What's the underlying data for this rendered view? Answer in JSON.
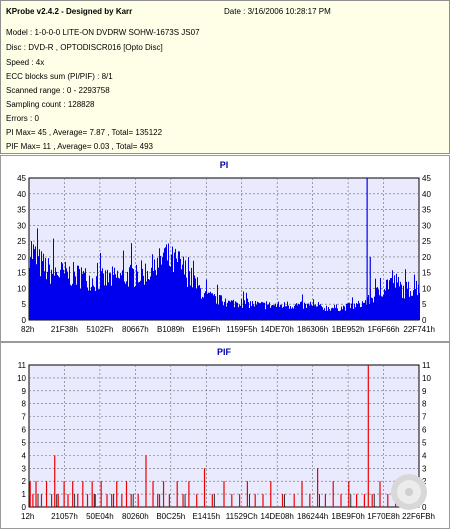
{
  "info": {
    "title": "KProbe v2.4.2 - Designed by Karr",
    "date": "Date : 3/16/2006 10:28:17 PM",
    "lines": [
      "Model : 1-0-0-0 LITE-ON DVDRW SOHW-1673S JS07",
      "Disc : DVD-R , OPTODISCR016 [Opto Disc]",
      "Speed : 4x",
      "ECC blocks sum (PI/PIF) : 8/1",
      "Scanned range : 0 - 2293758",
      "Sampling count : 128828",
      "Errors : 0",
      "PI Max= 45 , Average= 7.87 , Total= 135122",
      "PIF Max= 11 , Average= 0.03 , Total= 493"
    ]
  },
  "colors": {
    "plot_bg": "#eaeaff",
    "pi_series": "#0000ee",
    "pif_series": "#ee0000",
    "pif_minor": "#000000",
    "title_text": "#0000aa",
    "grid": "#6a6a6a",
    "info_bg": "#ffffe8"
  },
  "chart_data": [
    {
      "type": "bar",
      "title": "PI",
      "ylim": [
        0,
        45
      ],
      "yticks": [
        0,
        5,
        10,
        15,
        20,
        25,
        30,
        35,
        40,
        45
      ],
      "xtick_labels": [
        "82h",
        "21F38h",
        "5102Fh",
        "80667h",
        "B1089h",
        "E196Fh",
        "1159F5h",
        "14DE70h",
        "186306h",
        "1BE952h",
        "1F6F66h",
        "22F741h"
      ],
      "grid": true,
      "series": [
        {
          "name": "PI",
          "envelope_x": [
            0,
            0.02,
            0.05,
            0.09,
            0.13,
            0.17,
            0.21,
            0.25,
            0.29,
            0.33,
            0.345,
            0.36,
            0.385,
            0.41,
            0.43,
            0.45,
            0.47,
            0.49,
            0.51,
            0.55,
            0.6,
            0.65,
            0.7,
            0.75,
            0.8,
            0.84,
            0.87,
            0.9,
            0.93,
            0.96,
            1.0
          ],
          "envelope_y": [
            30,
            24,
            20,
            19,
            18,
            16,
            17,
            18,
            19,
            22,
            27,
            24,
            23,
            18,
            14,
            10,
            9,
            8,
            7,
            7,
            6,
            6,
            6,
            5,
            5,
            6,
            8,
            12,
            17,
            12,
            14
          ],
          "spikes": [
            {
              "x": 0.867,
              "y": 45
            },
            {
              "x": 0.875,
              "y": 20
            }
          ]
        }
      ]
    },
    {
      "type": "bar",
      "title": "PIF",
      "ylim": [
        0,
        11
      ],
      "yticks": [
        0,
        1,
        2,
        3,
        4,
        5,
        6,
        7,
        8,
        9,
        10,
        11
      ],
      "xtick_labels": [
        "12h",
        "21057h",
        "50E04h",
        "80260h",
        "B0C25h",
        "E1415h",
        "11529Ch",
        "14DE08h",
        "186244h",
        "1BE9F0h",
        "1F70E8h",
        "22F6FBh"
      ],
      "grid": true,
      "series": [
        {
          "name": "PIF",
          "x": [
            0.003,
            0.01,
            0.018,
            0.032,
            0.045,
            0.058,
            0.066,
            0.075,
            0.09,
            0.1,
            0.112,
            0.125,
            0.138,
            0.15,
            0.162,
            0.17,
            0.185,
            0.2,
            0.212,
            0.225,
            0.238,
            0.25,
            0.262,
            0.28,
            0.3,
            0.318,
            0.33,
            0.345,
            0.36,
            0.38,
            0.395,
            0.41,
            0.43,
            0.45,
            0.47,
            0.5,
            0.52,
            0.54,
            0.56,
            0.58,
            0.6,
            0.62,
            0.65,
            0.68,
            0.7,
            0.72,
            0.74,
            0.76,
            0.78,
            0.8,
            0.82,
            0.84,
            0.86,
            0.87,
            0.88,
            0.9,
            0.92,
            0.94,
            0.96,
            0.98
          ],
          "values": [
            2,
            1,
            2,
            1,
            2,
            1,
            4,
            1,
            2,
            1,
            2,
            1,
            2,
            1,
            2,
            1,
            2,
            1,
            1,
            2,
            1,
            2,
            1,
            1,
            4,
            2,
            1,
            2,
            1,
            2,
            1,
            2,
            1,
            3,
            1,
            2,
            1,
            1,
            2,
            1,
            1,
            2,
            1,
            1,
            2,
            1,
            3,
            1,
            2,
            1,
            2,
            1,
            1,
            11,
            1,
            2,
            1,
            1,
            2,
            1
          ]
        }
      ]
    }
  ]
}
